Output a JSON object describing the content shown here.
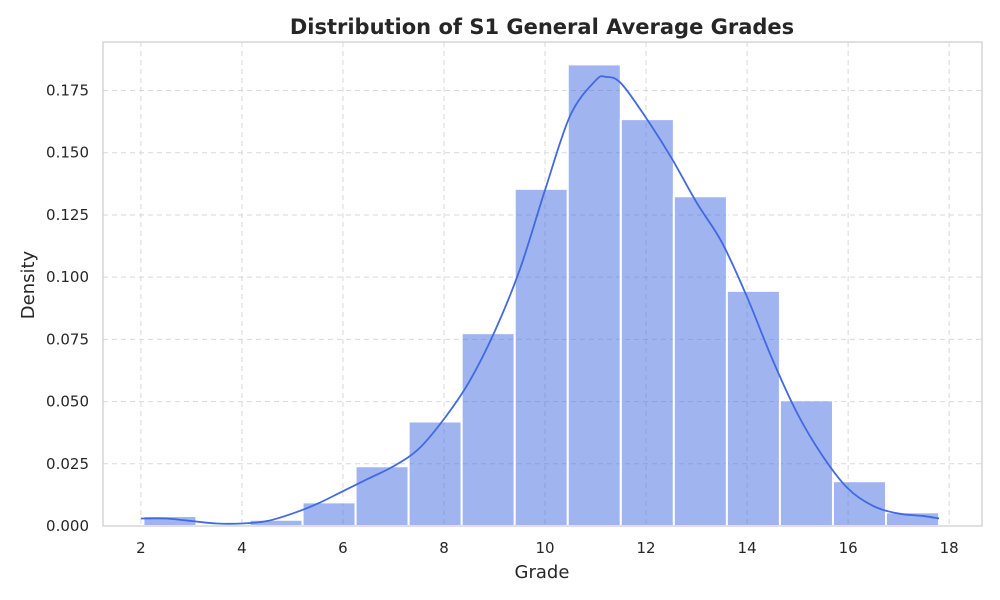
{
  "chart_data": {
    "type": "bar",
    "subtype": "histogram-with-kde",
    "title": "Distribution of S1 General Average Grades",
    "xlabel": "Grade",
    "ylabel": "Density",
    "xlim": [
      1.25,
      18.65
    ],
    "ylim": [
      0,
      0.1945
    ],
    "grid": true,
    "bar_color": "#4169e1",
    "kde_color": "#4169e1",
    "bins": [
      {
        "x0": 2.05,
        "x1": 3.1,
        "value": 0.004
      },
      {
        "x0": 3.1,
        "x1": 4.15,
        "value": 0.0
      },
      {
        "x0": 4.15,
        "x1": 5.2,
        "value": 0.0025
      },
      {
        "x0": 5.2,
        "x1": 6.25,
        "value": 0.0095
      },
      {
        "x0": 6.25,
        "x1": 7.3,
        "value": 0.024
      },
      {
        "x0": 7.3,
        "x1": 8.35,
        "value": 0.042
      },
      {
        "x0": 8.35,
        "x1": 9.4,
        "value": 0.0775
      },
      {
        "x0": 9.4,
        "x1": 10.45,
        "value": 0.1355
      },
      {
        "x0": 10.45,
        "x1": 11.5,
        "value": 0.1855
      },
      {
        "x0": 11.5,
        "x1": 12.55,
        "value": 0.1635
      },
      {
        "x0": 12.55,
        "x1": 13.6,
        "value": 0.1325
      },
      {
        "x0": 13.6,
        "x1": 14.65,
        "value": 0.0945
      },
      {
        "x0": 14.65,
        "x1": 15.7,
        "value": 0.0505
      },
      {
        "x0": 15.7,
        "x1": 16.75,
        "value": 0.018
      },
      {
        "x0": 16.75,
        "x1": 17.8,
        "value": 0.0055
      }
    ],
    "kde": {
      "x": [
        2.0,
        2.5,
        3.0,
        3.5,
        4.0,
        4.5,
        5.0,
        5.5,
        6.0,
        6.5,
        7.0,
        7.5,
        8.0,
        8.5,
        9.0,
        9.5,
        10.0,
        10.5,
        11.0,
        11.2,
        11.5,
        12.0,
        12.5,
        13.0,
        13.5,
        14.0,
        14.5,
        15.0,
        15.5,
        16.0,
        16.5,
        17.0,
        17.5,
        17.8
      ],
      "y": [
        0.003,
        0.003,
        0.002,
        0.001,
        0.001,
        0.002,
        0.005,
        0.009,
        0.014,
        0.019,
        0.024,
        0.031,
        0.043,
        0.058,
        0.078,
        0.103,
        0.135,
        0.165,
        0.179,
        0.1805,
        0.178,
        0.164,
        0.148,
        0.13,
        0.114,
        0.092,
        0.067,
        0.045,
        0.028,
        0.015,
        0.008,
        0.005,
        0.004,
        0.003
      ]
    },
    "x_ticks": [
      2,
      4,
      6,
      8,
      10,
      12,
      14,
      16,
      18
    ],
    "x_tick_labels": [
      "2",
      "4",
      "6",
      "8",
      "10",
      "12",
      "14",
      "16",
      "18"
    ],
    "y_ticks": [
      0,
      0.025,
      0.05,
      0.075,
      0.1,
      0.125,
      0.15,
      0.175
    ],
    "y_tick_labels": [
      "0.000",
      "0.025",
      "0.050",
      "0.075",
      "0.100",
      "0.125",
      "0.150",
      "0.175"
    ]
  }
}
